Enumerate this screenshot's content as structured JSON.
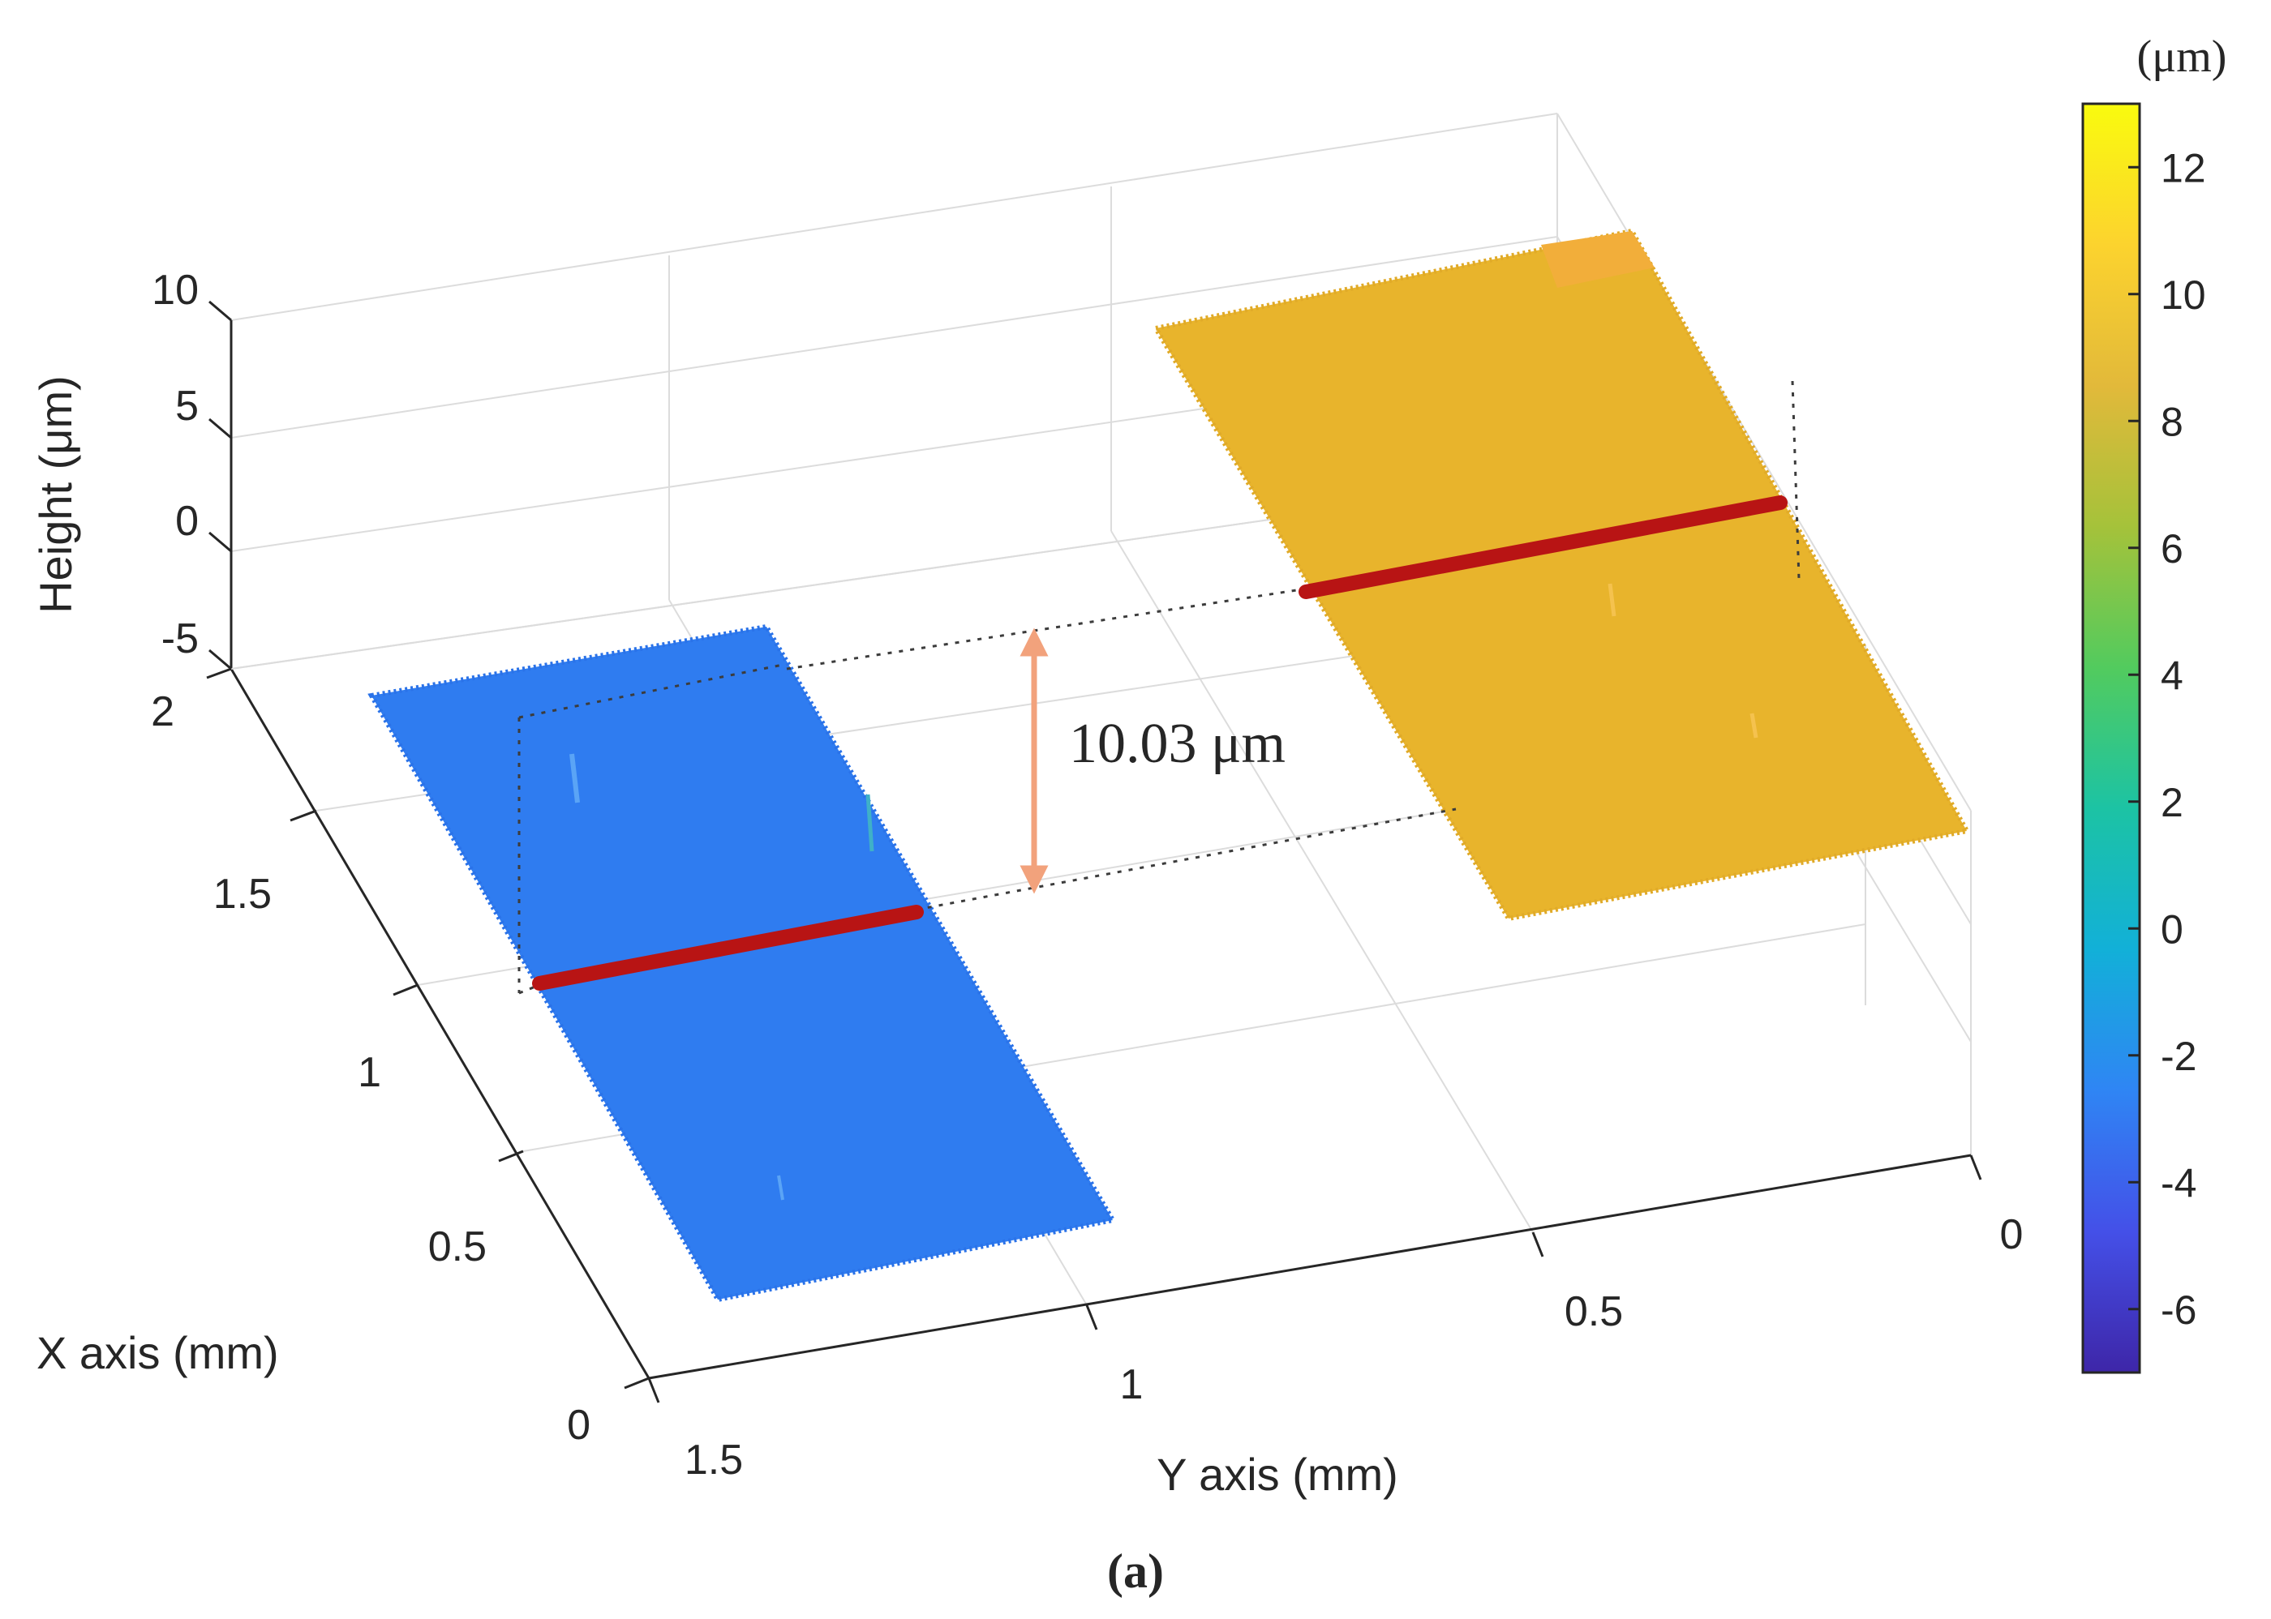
{
  "chart_data": {
    "type": "surface3d",
    "title": "",
    "axes": {
      "x": {
        "label": "X axis (mm)",
        "range": [
          0,
          2
        ],
        "ticks": [
          "0",
          "0.5",
          "1",
          "1.5",
          "2"
        ]
      },
      "y": {
        "label": "Y axis (mm)",
        "range": [
          0,
          1.5
        ],
        "ticks": [
          "0",
          "0.5",
          "1",
          "1.5"
        ]
      },
      "z": {
        "label": "Height (μm)",
        "range": [
          -5,
          10
        ],
        "ticks": [
          "-5",
          "0",
          "5",
          "10"
        ]
      }
    },
    "grid": true,
    "surfaces": [
      {
        "x_range": [
          0.3,
          2.0
        ],
        "y_range": [
          0.85,
          1.5
        ],
        "height": -0.5,
        "color": "#2f7cf0"
      },
      {
        "x_range": [
          0.3,
          2.0
        ],
        "y_range": [
          0.0,
          0.55
        ],
        "height": 9.5,
        "color": "#e8b42c"
      }
    ],
    "profile_lines": [
      {
        "x": 1.0,
        "y_range": [
          0.95,
          1.3
        ],
        "height": -0.5,
        "color": "#b81414"
      },
      {
        "x": 1.0,
        "y_range": [
          0.02,
          0.38
        ],
        "height": 9.5,
        "color": "#b81414"
      }
    ],
    "annotation": {
      "text": "10.03 μm",
      "value": 10.03,
      "arrow_color": "#f2a27c"
    },
    "colorbar": {
      "label": "(μm)",
      "range": [
        -7,
        13
      ],
      "ticks": [
        "12",
        "10",
        "8",
        "6",
        "4",
        "2",
        "0",
        "-2",
        "-4",
        "-6"
      ],
      "colormap": [
        "#3e26a8",
        "#4450e8",
        "#2f85f4",
        "#12b0d8",
        "#1cc3a4",
        "#52cb5e",
        "#a5c23a",
        "#e2b93a",
        "#fcd32e",
        "#f9fb0e"
      ]
    },
    "caption": "(a)"
  }
}
